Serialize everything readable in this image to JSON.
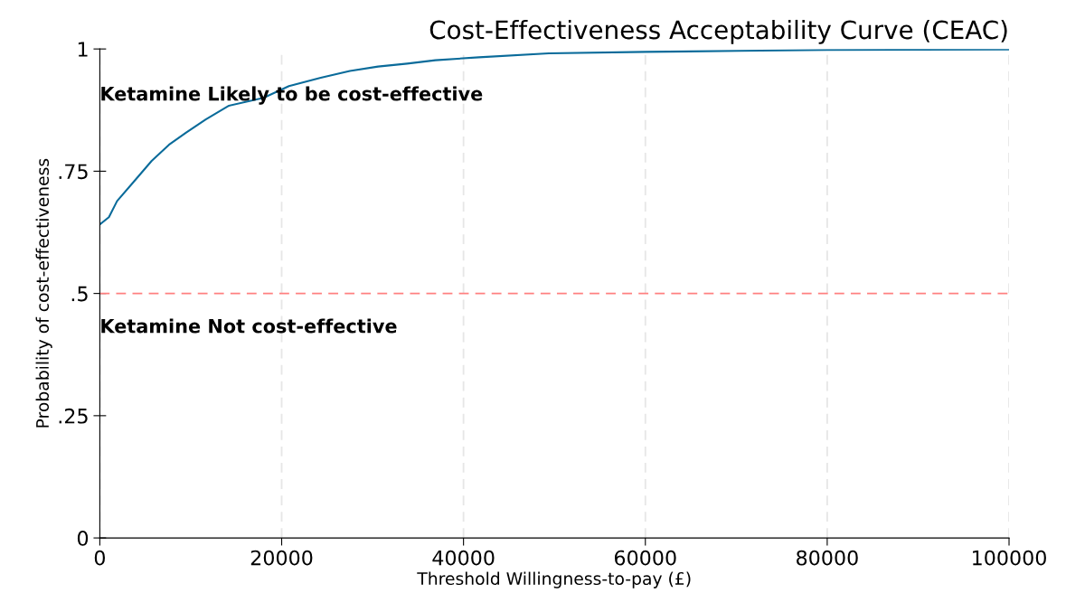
{
  "chart_data": {
    "type": "line",
    "title": "Cost-Effectiveness Acceptability Curve (CEAC)",
    "xlabel": "Threshold Willingness-to-pay (£)",
    "ylabel": "Probability of cost-effectiveness",
    "x": [
      0,
      1000,
      1900,
      3800,
      5700,
      7600,
      9500,
      11650,
      14200,
      18000,
      20800,
      24300,
      27500,
      30600,
      33800,
      36900,
      41700,
      49400,
      60000,
      70300,
      80000,
      100000
    ],
    "series": [
      {
        "color": "#0a6b9a",
        "values": [
          0.641,
          0.656,
          0.689,
          0.73,
          0.771,
          0.804,
          0.829,
          0.856,
          0.884,
          0.9,
          0.924,
          0.941,
          0.955,
          0.964,
          0.97,
          0.977,
          0.983,
          0.991,
          0.994,
          0.996,
          0.998,
          0.999
        ]
      }
    ],
    "xlim": [
      0,
      100000
    ],
    "xticks": [
      0,
      20000,
      40000,
      60000,
      80000,
      100000
    ],
    "ylim": [
      0,
      1
    ],
    "yticks": [
      {
        "value": 0,
        "label": "0"
      },
      {
        "value": 0.25,
        "label": ".25"
      },
      {
        "value": 0.5,
        "label": ".5"
      },
      {
        "value": 0.75,
        "label": ".75"
      },
      {
        "value": 1,
        "label": "1"
      }
    ],
    "ref_lines": [
      {
        "axis": "y",
        "value": 0.5,
        "color": "#ff8080",
        "line_style": "dashed"
      }
    ],
    "annotations": [
      "Ketamine Likely to be cost-effective",
      "Ketamine Not cost-effective"
    ],
    "grid": "x",
    "marker": "none",
    "line_style": "solid"
  }
}
